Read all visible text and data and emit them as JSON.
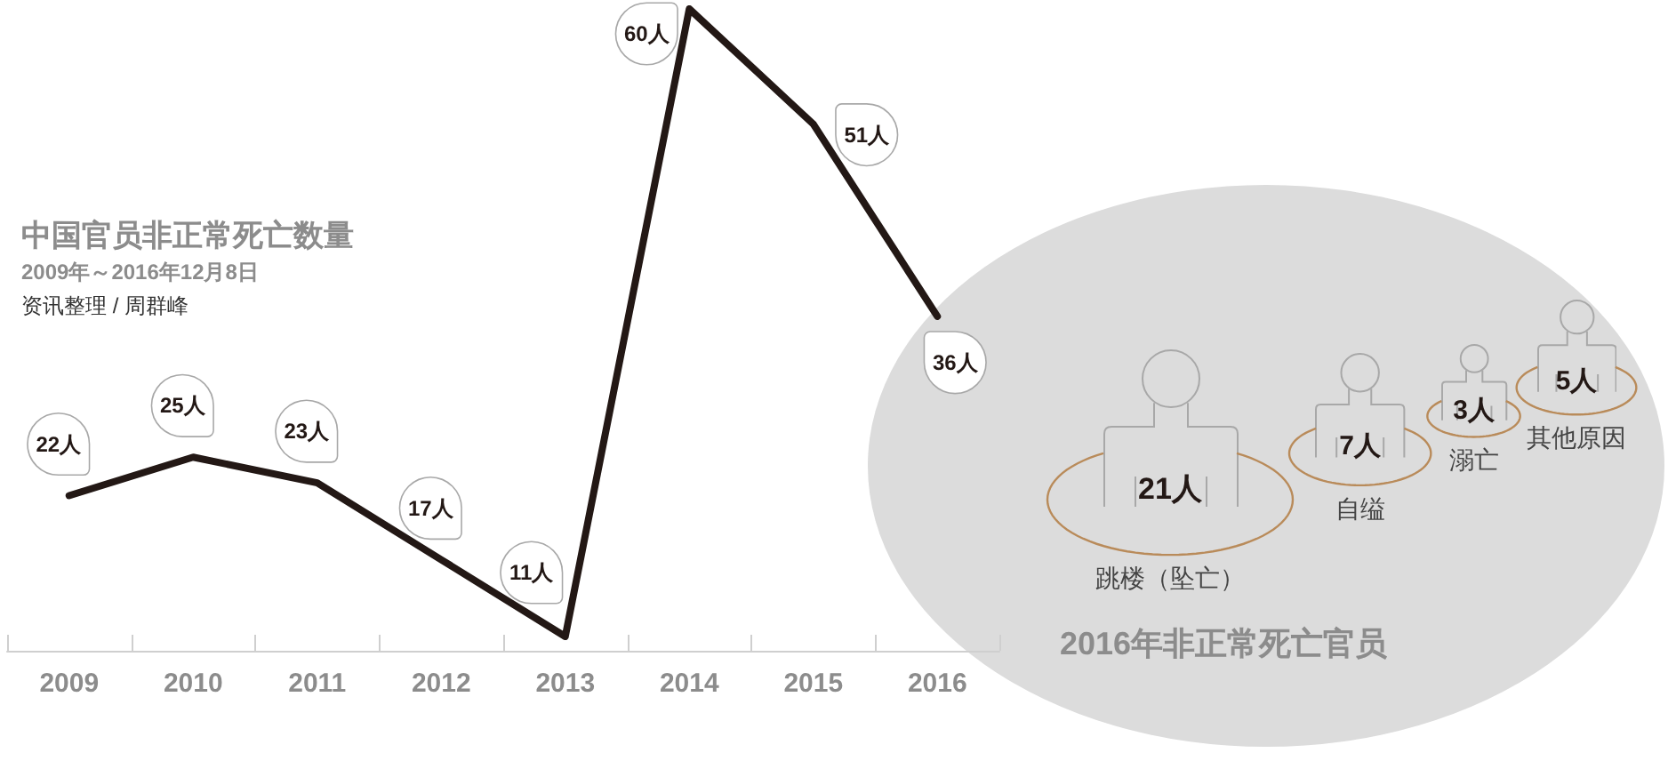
{
  "chart_data": [
    {
      "type": "line",
      "title": "中国官员非正常死亡数量",
      "subtitle": "2009年～2016年12月8日",
      "annotations": [
        "资讯整理 / 周群峰"
      ],
      "categories": [
        "2009",
        "2010",
        "2011",
        "2012",
        "2013",
        "2014",
        "2015",
        "2016"
      ],
      "values": [
        22,
        25,
        23,
        17,
        11,
        60,
        51,
        36
      ],
      "value_labels": [
        "22人",
        "25人",
        "23人",
        "17人",
        "11人",
        "60人",
        "51人",
        "36人"
      ],
      "color": "#231815",
      "tick_labels": "x",
      "marker": "none",
      "line_style": "solid"
    },
    {
      "type": "other",
      "title": "2016年非正常死亡官员",
      "categories": [
        "跳楼（坠亡）",
        "自缢",
        "溺亡",
        "其他原因"
      ],
      "values": [
        21,
        7,
        3,
        5
      ],
      "value_labels": [
        "21人",
        "7人",
        "3人",
        "5人"
      ]
    }
  ]
}
